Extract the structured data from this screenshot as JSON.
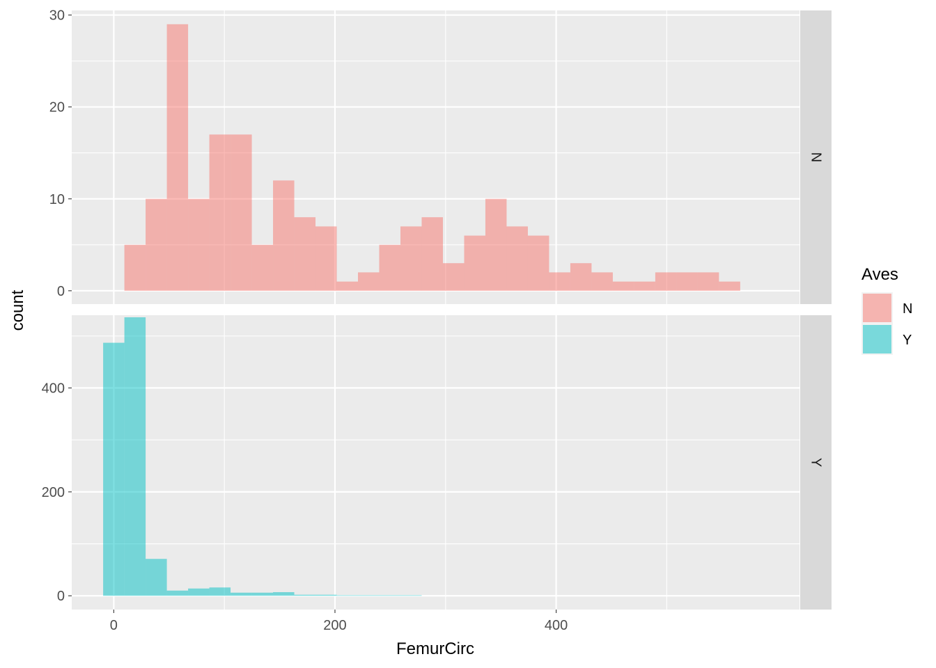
{
  "chart_data": {
    "type": "bar",
    "xlabel": "FemurCirc",
    "ylabel": "count",
    "xlim": [
      -38,
      620
    ],
    "x_ticks": [
      0,
      200,
      400
    ],
    "x_minor": [
      100,
      300,
      500
    ],
    "bin_width": 19.2,
    "legend": {
      "title": "Aves",
      "position": "right",
      "entries": [
        {
          "label": "N",
          "color": "#F8766D"
        },
        {
          "label": "Y",
          "color": "#00BFC4"
        }
      ]
    },
    "fill_alpha": 0.5,
    "panel_background": "#EBEBEB",
    "strip_background": "#D9D9D9",
    "grid": true,
    "panels": [
      {
        "strip": "N",
        "series_color": "#F8766D",
        "ylim": [
          -1.45,
          30.5
        ],
        "y_ticks": [
          0,
          10,
          20,
          30
        ],
        "y_minor": [
          5,
          15,
          25
        ],
        "bins": [
          {
            "x": 19.2,
            "count": 5
          },
          {
            "x": 38.4,
            "count": 10
          },
          {
            "x": 57.6,
            "count": 29
          },
          {
            "x": 76.8,
            "count": 10
          },
          {
            "x": 96.0,
            "count": 17
          },
          {
            "x": 115.2,
            "count": 17
          },
          {
            "x": 134.4,
            "count": 5
          },
          {
            "x": 153.6,
            "count": 12
          },
          {
            "x": 172.8,
            "count": 8
          },
          {
            "x": 192.0,
            "count": 7
          },
          {
            "x": 211.2,
            "count": 1
          },
          {
            "x": 230.4,
            "count": 2
          },
          {
            "x": 249.6,
            "count": 5
          },
          {
            "x": 268.8,
            "count": 7
          },
          {
            "x": 288.0,
            "count": 8
          },
          {
            "x": 307.2,
            "count": 3
          },
          {
            "x": 326.4,
            "count": 6
          },
          {
            "x": 345.6,
            "count": 10
          },
          {
            "x": 364.8,
            "count": 7
          },
          {
            "x": 384.0,
            "count": 6
          },
          {
            "x": 403.2,
            "count": 2
          },
          {
            "x": 422.4,
            "count": 3
          },
          {
            "x": 441.6,
            "count": 2
          },
          {
            "x": 460.8,
            "count": 1
          },
          {
            "x": 480.0,
            "count": 1
          },
          {
            "x": 499.2,
            "count": 2
          },
          {
            "x": 518.4,
            "count": 2
          },
          {
            "x": 537.6,
            "count": 2
          },
          {
            "x": 556.8,
            "count": 1
          }
        ]
      },
      {
        "strip": "Y",
        "series_color": "#00BFC4",
        "ylim": [
          -26.5,
          540
        ],
        "y_ticks": [
          0,
          200,
          400
        ],
        "y_minor": [
          100,
          300,
          500
        ],
        "bins": [
          {
            "x": 0.0,
            "count": 487
          },
          {
            "x": 19.2,
            "count": 536
          },
          {
            "x": 38.4,
            "count": 71
          },
          {
            "x": 57.6,
            "count": 10
          },
          {
            "x": 76.8,
            "count": 14
          },
          {
            "x": 96.0,
            "count": 16
          },
          {
            "x": 115.2,
            "count": 6
          },
          {
            "x": 134.4,
            "count": 6
          },
          {
            "x": 153.6,
            "count": 7
          },
          {
            "x": 172.8,
            "count": 2
          },
          {
            "x": 192.0,
            "count": 2
          },
          {
            "x": 211.2,
            "count": 1
          },
          {
            "x": 230.4,
            "count": 1
          },
          {
            "x": 249.6,
            "count": 1
          },
          {
            "x": 268.8,
            "count": 1
          }
        ]
      }
    ]
  }
}
